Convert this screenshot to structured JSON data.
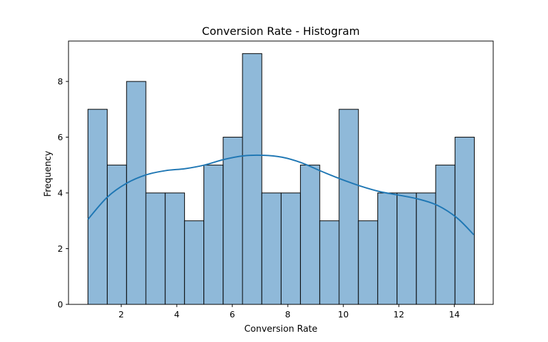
{
  "chart_data": {
    "type": "bar",
    "title": "Conversion Rate - Histogram",
    "xlabel": "Conversion Rate",
    "ylabel": "Frequency",
    "bin_start": 0.8,
    "bin_width": 0.696,
    "counts": [
      7,
      5,
      8,
      4,
      4,
      3,
      5,
      6,
      9,
      4,
      4,
      5,
      3,
      7,
      3,
      4,
      4,
      4,
      5,
      6
    ],
    "kde": {
      "x": [
        0.8,
        1.5,
        2.2,
        2.9,
        3.6,
        4.3,
        5.0,
        5.7,
        6.4,
        7.1,
        7.8,
        8.5,
        9.2,
        9.9,
        10.6,
        11.3,
        12.0,
        12.7,
        13.4,
        14.1,
        14.7
      ],
      "y": [
        3.05,
        3.85,
        4.35,
        4.65,
        4.8,
        4.87,
        5.0,
        5.2,
        5.33,
        5.35,
        5.28,
        5.08,
        4.78,
        4.5,
        4.25,
        4.05,
        3.92,
        3.78,
        3.55,
        3.1,
        2.5
      ]
    },
    "xlim": [
      0.1,
      15.4
    ],
    "ylim": [
      0,
      9.45
    ],
    "xticks": [
      2,
      4,
      6,
      8,
      10,
      12,
      14
    ],
    "yticks": [
      0,
      2,
      4,
      6,
      8
    ],
    "bar_color": "#8fb9d9",
    "edge_color": "#000000",
    "line_color": "#1f77b4"
  }
}
